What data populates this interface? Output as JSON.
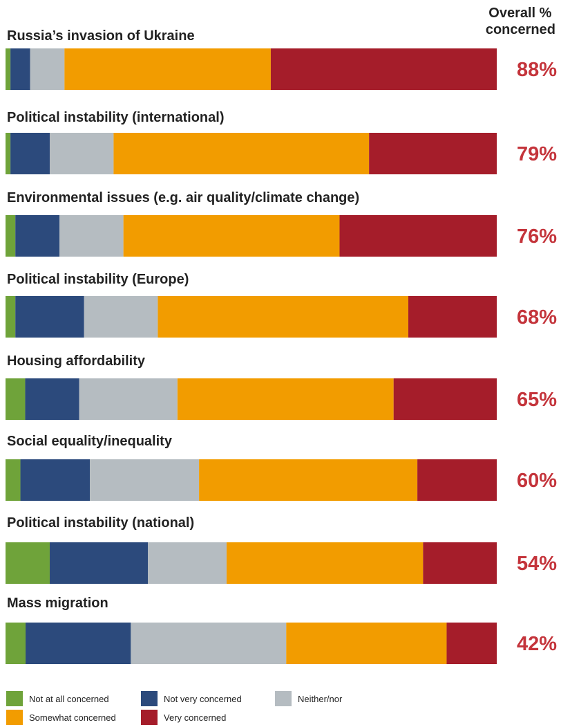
{
  "chart_data": {
    "type": "bar",
    "orientation": "horizontal",
    "stacked": true,
    "header": "Overall % concerned",
    "categories": [
      "Russia’s invasion of Ukraine",
      "Political instability (international)",
      "Environmental issues (e.g. air quality/climate change)",
      "Political instability (Europe)",
      "Housing affordability",
      "Social equality/inequality",
      "Political instability (national)",
      "Mass migration"
    ],
    "overall": [
      "88%",
      "79%",
      "76%",
      "68%",
      "65%",
      "60%",
      "54%",
      "42%"
    ],
    "series": [
      {
        "name": "Not at all concerned",
        "color": "#6fa33a",
        "values": [
          1,
          1,
          2,
          2,
          4,
          3,
          9,
          4
        ]
      },
      {
        "name": "Not very concerned",
        "color": "#2c4a7c",
        "values": [
          4,
          8,
          9,
          14,
          11,
          14,
          20,
          21
        ]
      },
      {
        "name": "Neither/nor",
        "color": "#b5bcc1",
        "values": [
          7,
          13,
          13,
          15,
          20,
          22,
          16,
          31
        ]
      },
      {
        "name": "Somewhat concerned",
        "color": "#f29c00",
        "values": [
          42,
          52,
          44,
          51,
          44,
          44,
          40,
          32
        ]
      },
      {
        "name": "Very concerned",
        "color": "#a51d2a",
        "values": [
          46,
          26,
          32,
          18,
          21,
          16,
          15,
          10
        ]
      }
    ],
    "xlim": [
      0,
      100
    ],
    "overall_color": "#c4343b",
    "legend_position": "bottom"
  }
}
